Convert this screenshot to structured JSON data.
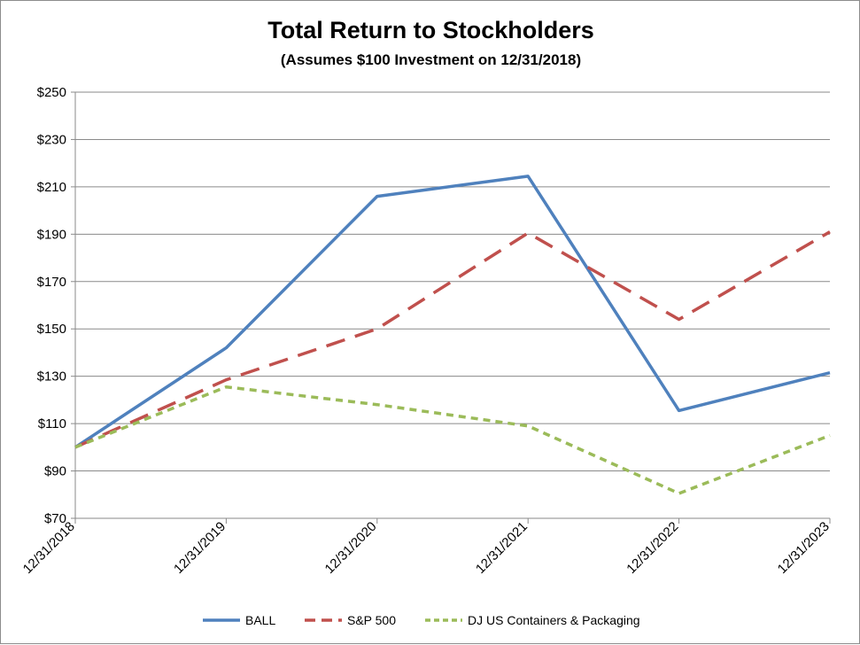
{
  "chart_data": {
    "type": "line",
    "title": "Total Return to Stockholders",
    "subtitle": "(Assumes $100 Investment on 12/31/2018)",
    "categories": [
      "12/31/2018",
      "12/31/2019",
      "12/31/2020",
      "12/31/2021",
      "12/31/2022",
      "12/31/2023"
    ],
    "yticks": [
      "$70",
      "$90",
      "$110",
      "$130",
      "$150",
      "$170",
      "$190",
      "$210",
      "$230",
      "$250"
    ],
    "ylim": [
      70,
      250
    ],
    "grid": true,
    "legend_position": "bottom",
    "series": [
      {
        "name": "BALL",
        "values": [
          100,
          142,
          206,
          214.5,
          115.5,
          131.5
        ],
        "color": "#4f81bd",
        "style": "solid"
      },
      {
        "name": "S&P 500",
        "values": [
          100,
          128.5,
          150,
          190.5,
          154,
          191
        ],
        "color": "#c0504d",
        "style": "dash"
      },
      {
        "name": "DJ US Containers & Packaging",
        "values": [
          100,
          125.5,
          118,
          109,
          80.5,
          105
        ],
        "color": "#9bbb59",
        "style": "dot"
      }
    ]
  }
}
